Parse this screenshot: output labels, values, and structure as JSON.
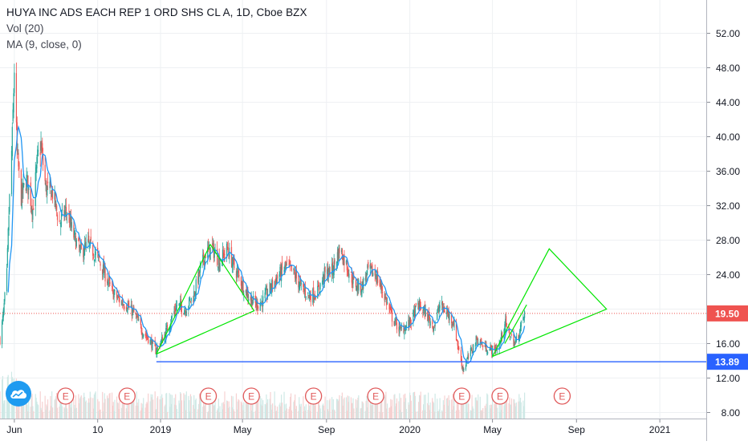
{
  "legend": {
    "title": "HUYA INC ADS EACH REP 1 ORD SHS CL A, 1D, Cboe BZX",
    "volume": "Vol (20)",
    "ma": "MA (9, close, 0)"
  },
  "colors": {
    "up": "#26a69a",
    "down": "#ef5350",
    "ma_line": "#2196f3",
    "drawing": "#00e600",
    "support_line": "#2962ff",
    "last_price_line": "#ef5350",
    "earnings_marker": "#e0595a"
  },
  "icons": {
    "logo": "tradingview-cloud-icon"
  },
  "chart_data": {
    "type": "candlestick",
    "symbol": "HUYA",
    "interval": "1D",
    "exchange": "Cboe BZX",
    "y_axis": {
      "ticks": [
        "8.00",
        "12.00",
        "16.00",
        "20.00",
        "24.00",
        "28.00",
        "32.00",
        "36.00",
        "40.00",
        "44.00",
        "48.00",
        "52.00"
      ],
      "range": [
        8,
        54
      ]
    },
    "x_axis": {
      "ticks": [
        "Jun",
        "10",
        "2019",
        "May",
        "Sep",
        "2020",
        "May",
        "Sep",
        "2021"
      ],
      "range": [
        "2018-05-11",
        "2021-03-10"
      ]
    },
    "price_labels": [
      {
        "value": "19.50",
        "role": "last-price"
      },
      {
        "value": "13.89",
        "role": "horizontal-line"
      }
    ],
    "close_series": [
      [
        "2018-05-11",
        16.5
      ],
      [
        "2018-05-16",
        19.5
      ],
      [
        "2018-05-21",
        24.0
      ],
      [
        "2018-05-24",
        31.0
      ],
      [
        "2018-05-29",
        40.0
      ],
      [
        "2018-06-01",
        48.0
      ],
      [
        "2018-06-05",
        38.0
      ],
      [
        "2018-06-11",
        33.0
      ],
      [
        "2018-06-19",
        35.0
      ],
      [
        "2018-06-28",
        31.5
      ],
      [
        "2018-07-05",
        37.5
      ],
      [
        "2018-07-10",
        39.0
      ],
      [
        "2018-07-17",
        34.0
      ],
      [
        "2018-07-27",
        33.5
      ],
      [
        "2018-08-06",
        30.0
      ],
      [
        "2018-08-16",
        31.5
      ],
      [
        "2018-08-27",
        28.5
      ],
      [
        "2018-09-06",
        26.5
      ],
      [
        "2018-09-17",
        27.5
      ],
      [
        "2018-10-01",
        26.0
      ],
      [
        "2018-10-12",
        24.0
      ],
      [
        "2018-10-22",
        22.0
      ],
      [
        "2018-11-02",
        21.0
      ],
      [
        "2018-11-12",
        20.5
      ],
      [
        "2018-11-23",
        19.5
      ],
      [
        "2018-12-05",
        17.5
      ],
      [
        "2018-12-15",
        16.5
      ],
      [
        "2018-12-25",
        15.2
      ],
      [
        "2019-01-04",
        16.5
      ],
      [
        "2019-01-15",
        18.5
      ],
      [
        "2019-01-25",
        20.5
      ],
      [
        "2019-02-06",
        20.0
      ],
      [
        "2019-02-18",
        21.5
      ],
      [
        "2019-02-28",
        24.5
      ],
      [
        "2019-03-08",
        26.5
      ],
      [
        "2019-03-18",
        27.0
      ],
      [
        "2019-03-28",
        25.5
      ],
      [
        "2019-04-09",
        27.0
      ],
      [
        "2019-04-18",
        25.0
      ],
      [
        "2019-04-30",
        23.0
      ],
      [
        "2019-05-10",
        21.5
      ],
      [
        "2019-05-21",
        20.5
      ],
      [
        "2019-05-31",
        21.0
      ],
      [
        "2019-06-11",
        22.5
      ],
      [
        "2019-06-24",
        24.0
      ],
      [
        "2019-07-05",
        25.0
      ],
      [
        "2019-07-16",
        24.0
      ],
      [
        "2019-07-26",
        22.5
      ],
      [
        "2019-08-07",
        21.5
      ],
      [
        "2019-08-19",
        22.0
      ],
      [
        "2019-08-29",
        24.0
      ],
      [
        "2019-09-10",
        24.5
      ],
      [
        "2019-09-20",
        27.0
      ],
      [
        "2019-10-01",
        25.0
      ],
      [
        "2019-10-11",
        23.0
      ],
      [
        "2019-10-22",
        22.5
      ],
      [
        "2019-11-01",
        24.5
      ],
      [
        "2019-11-12",
        24.0
      ],
      [
        "2019-11-25",
        21.5
      ],
      [
        "2019-12-06",
        19.0
      ],
      [
        "2019-12-18",
        17.5
      ],
      [
        "2020-01-02",
        18.5
      ],
      [
        "2020-01-13",
        20.5
      ],
      [
        "2020-01-24",
        19.5
      ],
      [
        "2020-02-05",
        18.0
      ],
      [
        "2020-02-14",
        20.5
      ],
      [
        "2020-02-25",
        19.5
      ],
      [
        "2020-03-05",
        18.5
      ],
      [
        "2020-03-12",
        15.5
      ],
      [
        "2020-03-19",
        13.0
      ],
      [
        "2020-03-27",
        14.5
      ],
      [
        "2020-04-08",
        16.5
      ],
      [
        "2020-04-21",
        15.5
      ],
      [
        "2020-05-04",
        15.2
      ],
      [
        "2020-05-12",
        16.0
      ],
      [
        "2020-05-19",
        18.5
      ],
      [
        "2020-05-26",
        17.0
      ],
      [
        "2020-06-03",
        16.0
      ],
      [
        "2020-06-10",
        17.5
      ],
      [
        "2020-06-17",
        19.5
      ]
    ],
    "earnings_dates": [
      "2018-08-15",
      "2018-11-13",
      "2019-03-12",
      "2019-05-14",
      "2019-08-13",
      "2019-11-12",
      "2020-03-17",
      "2020-05-12",
      "2020-08-11"
    ],
    "drawings": {
      "horizontal_line": {
        "price": 13.89
      },
      "wedge_2019": [
        [
          "2018-12-26",
          14.8
        ],
        [
          "2019-03-15",
          27.5
        ],
        [
          "2019-05-18",
          19.8
        ],
        [
          "2018-12-26",
          14.8
        ]
      ],
      "projection_2020": [
        [
          "2020-05-01",
          14.5
        ],
        [
          "2020-07-23",
          27.0
        ],
        [
          "2020-10-15",
          20.0
        ],
        [
          "2020-05-01",
          14.5
        ]
      ],
      "channel_line_2020": [
        [
          "2020-05-19",
          16.0
        ],
        [
          "2020-06-20",
          20.5
        ]
      ]
    }
  }
}
